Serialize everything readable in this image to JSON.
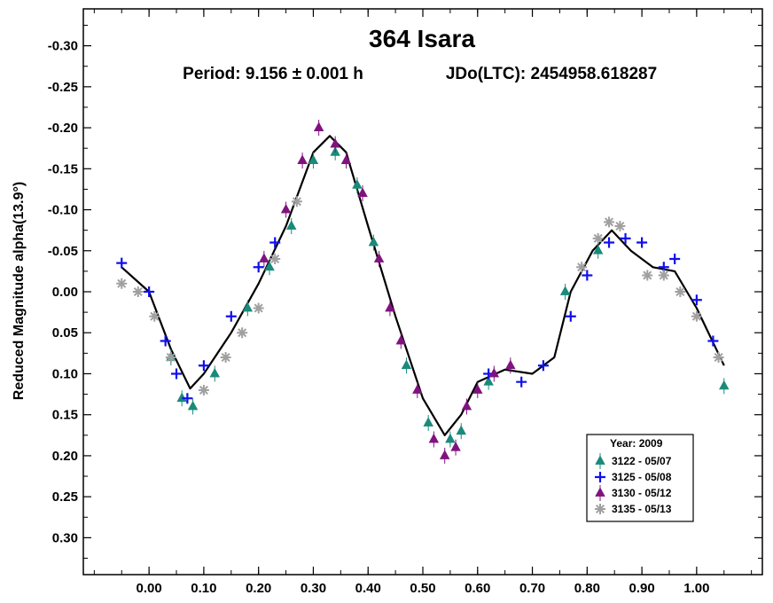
{
  "chart_data": {
    "type": "scatter",
    "title": "364 Isara",
    "subtitle_period": "Period: 9.156 ± 0.001 h",
    "subtitle_epoch": "JDo(LTC): 2454958.618287",
    "xlabel": "",
    "ylabel": "Reduced Magnitude alpha(13.9°)",
    "xlim": [
      -0.12,
      1.12
    ],
    "ylim": [
      -0.345,
      0.345
    ],
    "y_inverted": true,
    "grid": false,
    "x_ticks": [
      "0.00",
      "0.10",
      "0.20",
      "0.30",
      "0.40",
      "0.50",
      "0.60",
      "0.70",
      "0.80",
      "0.90",
      "1.00"
    ],
    "y_ticks": [
      "-0.30",
      "-0.25",
      "-0.20",
      "-0.15",
      "-0.10",
      "-0.05",
      "0.00",
      "0.05",
      "0.10",
      "0.15",
      "0.20",
      "0.25",
      "0.30"
    ],
    "legend": {
      "placement": "bottom-right",
      "title": "Year: 2009",
      "entries": [
        {
          "label": "3122 - 05/07",
          "marker": "triangle",
          "color": "#1a8a7a"
        },
        {
          "label": "3125 - 05/08",
          "marker": "plus",
          "color": "#1010ee"
        },
        {
          "label": "3130 - 05/12",
          "marker": "triangle",
          "color": "#80137f"
        },
        {
          "label": "3135 - 05/13",
          "marker": "asterisk",
          "color": "#a0a0a0"
        }
      ]
    },
    "fit_curve": {
      "color": "#000000",
      "points": [
        [
          -0.05,
          -0.03
        ],
        [
          0.0,
          0.0
        ],
        [
          0.04,
          0.07
        ],
        [
          0.075,
          0.118
        ],
        [
          0.1,
          0.1
        ],
        [
          0.15,
          0.05
        ],
        [
          0.2,
          -0.01
        ],
        [
          0.25,
          -0.08
        ],
        [
          0.3,
          -0.17
        ],
        [
          0.33,
          -0.19
        ],
        [
          0.36,
          -0.17
        ],
        [
          0.4,
          -0.08
        ],
        [
          0.45,
          0.03
        ],
        [
          0.5,
          0.13
        ],
        [
          0.54,
          0.175
        ],
        [
          0.57,
          0.15
        ],
        [
          0.6,
          0.11
        ],
        [
          0.65,
          0.095
        ],
        [
          0.7,
          0.1
        ],
        [
          0.74,
          0.08
        ],
        [
          0.77,
          0.0
        ],
        [
          0.81,
          -0.05
        ],
        [
          0.845,
          -0.075
        ],
        [
          0.88,
          -0.05
        ],
        [
          0.92,
          -0.03
        ],
        [
          0.96,
          -0.025
        ],
        [
          1.0,
          0.02
        ],
        [
          1.05,
          0.09
        ]
      ]
    },
    "series": [
      {
        "name": "3122 - 05/07",
        "marker": "triangle",
        "color": "#1a8a7a",
        "points": [
          [
            0.04,
            0.08
          ],
          [
            0.06,
            0.13
          ],
          [
            0.08,
            0.14
          ],
          [
            0.12,
            0.1
          ],
          [
            0.18,
            0.02
          ],
          [
            0.22,
            -0.03
          ],
          [
            0.26,
            -0.08
          ],
          [
            0.3,
            -0.16
          ],
          [
            0.34,
            -0.17
          ],
          [
            0.38,
            -0.13
          ],
          [
            0.41,
            -0.06
          ],
          [
            0.47,
            0.09
          ],
          [
            0.51,
            0.16
          ],
          [
            0.55,
            0.18
          ],
          [
            0.57,
            0.17
          ],
          [
            0.62,
            0.11
          ],
          [
            0.76,
            0.0
          ],
          [
            0.82,
            -0.05
          ],
          [
            1.05,
            0.115
          ]
        ]
      },
      {
        "name": "3125 - 05/08",
        "marker": "plus",
        "color": "#1010ee",
        "points": [
          [
            -0.05,
            -0.035
          ],
          [
            0.0,
            0.0
          ],
          [
            0.03,
            0.06
          ],
          [
            0.05,
            0.1
          ],
          [
            0.07,
            0.13
          ],
          [
            0.1,
            0.09
          ],
          [
            0.15,
            0.03
          ],
          [
            0.2,
            -0.03
          ],
          [
            0.23,
            -0.06
          ],
          [
            0.62,
            0.1
          ],
          [
            0.68,
            0.11
          ],
          [
            0.72,
            0.09
          ],
          [
            0.77,
            0.03
          ],
          [
            0.8,
            -0.02
          ],
          [
            0.84,
            -0.06
          ],
          [
            0.87,
            -0.065
          ],
          [
            0.9,
            -0.06
          ],
          [
            0.94,
            -0.03
          ],
          [
            0.96,
            -0.04
          ],
          [
            1.0,
            0.01
          ],
          [
            1.03,
            0.06
          ]
        ]
      },
      {
        "name": "3130 - 05/12",
        "marker": "triangle",
        "color": "#80137f",
        "points": [
          [
            0.21,
            -0.04
          ],
          [
            0.25,
            -0.1
          ],
          [
            0.28,
            -0.16
          ],
          [
            0.31,
            -0.2
          ],
          [
            0.34,
            -0.18
          ],
          [
            0.36,
            -0.16
          ],
          [
            0.39,
            -0.12
          ],
          [
            0.42,
            -0.04
          ],
          [
            0.44,
            0.02
          ],
          [
            0.46,
            0.06
          ],
          [
            0.49,
            0.12
          ],
          [
            0.52,
            0.18
          ],
          [
            0.54,
            0.2
          ],
          [
            0.56,
            0.19
          ],
          [
            0.58,
            0.14
          ],
          [
            0.6,
            0.12
          ],
          [
            0.63,
            0.1
          ],
          [
            0.66,
            0.09
          ]
        ]
      },
      {
        "name": "3135 - 05/13",
        "marker": "asterisk",
        "color": "#a0a0a0",
        "points": [
          [
            -0.05,
            -0.01
          ],
          [
            -0.02,
            0.0
          ],
          [
            0.01,
            0.03
          ],
          [
            0.04,
            0.08
          ],
          [
            0.1,
            0.12
          ],
          [
            0.14,
            0.08
          ],
          [
            0.17,
            0.05
          ],
          [
            0.2,
            0.02
          ],
          [
            0.23,
            -0.04
          ],
          [
            0.27,
            -0.11
          ],
          [
            0.79,
            -0.03
          ],
          [
            0.82,
            -0.065
          ],
          [
            0.84,
            -0.085
          ],
          [
            0.86,
            -0.08
          ],
          [
            0.91,
            -0.02
          ],
          [
            0.94,
            -0.02
          ],
          [
            0.97,
            0.0
          ],
          [
            1.0,
            0.03
          ],
          [
            1.04,
            0.08
          ]
        ]
      }
    ]
  }
}
